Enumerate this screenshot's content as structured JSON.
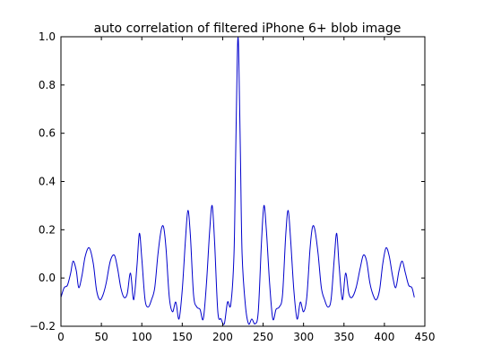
{
  "chart_data": {
    "type": "line",
    "title": "auto correlation of filtered iPhone 6+ blob image",
    "xlabel": "",
    "ylabel": "",
    "xlim": [
      0,
      450
    ],
    "ylim": [
      -0.2,
      1.0
    ],
    "grid": false,
    "x_ticks": [
      0,
      50,
      100,
      150,
      200,
      250,
      300,
      350,
      400,
      450
    ],
    "x_tick_labels": [
      "0",
      "50",
      "100",
      "150",
      "200",
      "250",
      "300",
      "350",
      "400",
      "450"
    ],
    "y_ticks": [
      -0.2,
      0.0,
      0.2,
      0.4,
      0.6,
      0.8,
      1.0
    ],
    "y_tick_labels": [
      "−0.2",
      "0.0",
      "0.2",
      "0.4",
      "0.6",
      "0.8",
      "1.0"
    ],
    "series": [
      {
        "color": "#0000cc",
        "x": [
          0,
          4,
          8,
          12,
          15,
          19,
          22,
          26,
          30,
          35,
          40,
          44,
          48,
          52,
          56,
          61,
          66,
          70,
          74,
          78,
          82,
          86,
          90,
          94,
          97,
          100,
          104,
          108,
          112,
          116,
          120,
          124,
          127,
          130,
          134,
          138,
          142,
          146,
          150,
          154,
          157,
          160,
          164,
          168,
          172,
          176,
          180,
          184,
          187,
          190,
          194,
          198,
          202,
          206,
          210,
          214,
          216,
          218,
          219,
          220,
          222,
          224,
          228,
          232,
          236,
          240,
          244,
          248,
          251,
          254,
          258,
          262,
          266,
          270,
          274,
          278,
          281,
          284,
          288,
          292,
          296,
          300,
          304,
          308,
          311,
          314,
          318,
          322,
          326,
          330,
          334,
          338,
          341,
          344,
          348,
          352,
          356,
          360,
          365,
          370,
          374,
          378,
          382,
          386,
          390,
          394,
          398,
          402,
          406,
          410,
          414,
          418,
          422,
          426,
          430,
          434,
          437
        ],
        "y": [
          -0.08,
          -0.04,
          -0.03,
          0.02,
          0.07,
          0.03,
          -0.04,
          0.01,
          0.09,
          0.125,
          0.06,
          -0.05,
          -0.09,
          -0.07,
          -0.02,
          0.07,
          0.095,
          0.04,
          -0.04,
          -0.08,
          -0.065,
          0.02,
          -0.09,
          0.05,
          0.185,
          0.08,
          -0.09,
          -0.12,
          -0.09,
          -0.04,
          0.1,
          0.2,
          0.21,
          0.12,
          -0.08,
          -0.14,
          -0.1,
          -0.17,
          -0.05,
          0.16,
          0.28,
          0.18,
          -0.07,
          -0.12,
          -0.13,
          -0.17,
          -0.02,
          0.2,
          0.3,
          0.15,
          -0.14,
          -0.17,
          -0.19,
          -0.1,
          -0.11,
          0.1,
          0.5,
          0.9,
          1.0,
          0.9,
          0.5,
          0.1,
          -0.11,
          -0.19,
          -0.17,
          -0.19,
          -0.14,
          0.15,
          0.3,
          0.2,
          -0.02,
          -0.17,
          -0.13,
          -0.12,
          -0.07,
          0.18,
          0.28,
          0.16,
          -0.05,
          -0.17,
          -0.1,
          -0.14,
          -0.08,
          0.12,
          0.21,
          0.2,
          0.1,
          -0.04,
          -0.09,
          -0.12,
          -0.09,
          0.08,
          0.185,
          0.05,
          -0.09,
          0.02,
          -0.065,
          -0.08,
          -0.04,
          0.04,
          0.095,
          0.07,
          -0.02,
          -0.07,
          -0.09,
          -0.05,
          0.06,
          0.125,
          0.09,
          0.01,
          -0.04,
          0.03,
          0.07,
          0.02,
          -0.03,
          -0.04,
          -0.08
        ]
      }
    ]
  }
}
